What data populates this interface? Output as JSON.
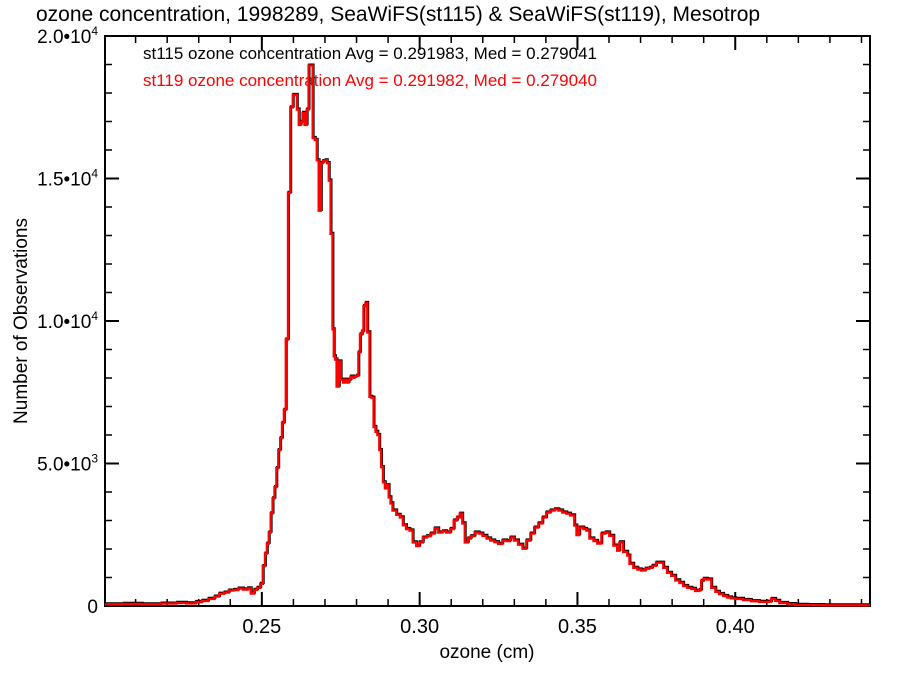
{
  "header": {
    "title": "ozone concentration, 1998289, SeaWiFS(st115) & SeaWiFS(st119), Mesotrop"
  },
  "legend": {
    "items": [
      {
        "name": "st115",
        "label": "st115 ozone concentration Avg = 0.291983, Med = 0.279041",
        "color": "#000000"
      },
      {
        "name": "st119",
        "label": "st119 ozone concentration Avg = 0.291982, Med = 0.279040",
        "color": "#ff0000"
      }
    ]
  },
  "chart_data": {
    "type": "line",
    "subtype": "histogram-step",
    "title": "ozone concentration, 1998289, SeaWiFS(st115) & SeaWiFS(st119), Mesotrop",
    "xlabel": "ozone (cm)",
    "ylabel": "Number of Observations",
    "xlim": [
      0.2003,
      0.4427
    ],
    "ylim": [
      0,
      20000
    ],
    "grid": false,
    "legend_position": "top-left-inside",
    "axis_color": "#000000",
    "x_ticks": {
      "major": [
        {
          "value": 0.25,
          "label": "0.25"
        },
        {
          "value": 0.3,
          "label": "0.30"
        },
        {
          "value": 0.35,
          "label": "0.35"
        },
        {
          "value": 0.4,
          "label": "0.40"
        }
      ],
      "minor_step": 0.01
    },
    "y_ticks": {
      "major": [
        {
          "value": 0,
          "mantissa": "0",
          "exponent": ""
        },
        {
          "value": 5000,
          "mantissa": "5.0•10",
          "exponent": "3"
        },
        {
          "value": 10000,
          "mantissa": "1.0•10",
          "exponent": "4"
        },
        {
          "value": 15000,
          "mantissa": "1.5•10",
          "exponent": "4"
        },
        {
          "value": 20000,
          "mantissa": "2.0•10",
          "exponent": "4"
        }
      ],
      "minor_step": 1000
    },
    "series": [
      {
        "name": "st115 ozone concentration",
        "color": "#000000",
        "avg": "0.291983",
        "med": "0.279041"
      },
      {
        "name": "st119 ozone concentration",
        "color": "#ff0000",
        "avg": "0.291982",
        "med": "0.279040"
      }
    ],
    "x_end": 0.4427,
    "steps": [
      [
        0.2003,
        60
      ],
      [
        0.206,
        75
      ],
      [
        0.212,
        60
      ],
      [
        0.218,
        85
      ],
      [
        0.223,
        110
      ],
      [
        0.226,
        90
      ],
      [
        0.229,
        140
      ],
      [
        0.231,
        180
      ],
      [
        0.233,
        250
      ],
      [
        0.235,
        330
      ],
      [
        0.2365,
        430
      ],
      [
        0.238,
        470
      ],
      [
        0.2395,
        540
      ],
      [
        0.241,
        560
      ],
      [
        0.2425,
        610
      ],
      [
        0.244,
        580
      ],
      [
        0.2455,
        620
      ],
      [
        0.2465,
        440
      ],
      [
        0.2475,
        570
      ],
      [
        0.2485,
        640
      ],
      [
        0.2495,
        780
      ],
      [
        0.2503,
        1400
      ],
      [
        0.251,
        1840
      ],
      [
        0.2516,
        2190
      ],
      [
        0.2522,
        2580
      ],
      [
        0.2528,
        3250
      ],
      [
        0.2534,
        3780
      ],
      [
        0.254,
        4170
      ],
      [
        0.2546,
        4840
      ],
      [
        0.2552,
        5470
      ],
      [
        0.2558,
        5890
      ],
      [
        0.2564,
        6420
      ],
      [
        0.257,
        6880
      ],
      [
        0.2576,
        9350
      ],
      [
        0.2583,
        14500
      ],
      [
        0.259,
        17500
      ],
      [
        0.2598,
        17930
      ],
      [
        0.2605,
        17930
      ],
      [
        0.2611,
        17420
      ],
      [
        0.2617,
        16880
      ],
      [
        0.2623,
        16990
      ],
      [
        0.2629,
        17300
      ],
      [
        0.2635,
        16880
      ],
      [
        0.2642,
        17420
      ],
      [
        0.2648,
        18960
      ],
      [
        0.2655,
        18960
      ],
      [
        0.2661,
        16420
      ],
      [
        0.2668,
        16350
      ],
      [
        0.2674,
        15640
      ],
      [
        0.268,
        13870
      ],
      [
        0.2687,
        15540
      ],
      [
        0.2693,
        15610
      ],
      [
        0.27,
        15640
      ],
      [
        0.2706,
        15540
      ],
      [
        0.2712,
        14930
      ],
      [
        0.2718,
        13060
      ],
      [
        0.2724,
        9710
      ],
      [
        0.2728,
        8760
      ],
      [
        0.2732,
        8650
      ],
      [
        0.2737,
        7700
      ],
      [
        0.2744,
        8580
      ],
      [
        0.275,
        7940
      ],
      [
        0.2757,
        7840
      ],
      [
        0.2763,
        7940
      ],
      [
        0.2769,
        7840
      ],
      [
        0.2775,
        7940
      ],
      [
        0.2781,
        8050
      ],
      [
        0.2788,
        8010
      ],
      [
        0.2794,
        8050
      ],
      [
        0.28,
        8080
      ],
      [
        0.2806,
        8900
      ],
      [
        0.2811,
        9530
      ],
      [
        0.2817,
        9640
      ],
      [
        0.2822,
        10520
      ],
      [
        0.2828,
        10630
      ],
      [
        0.2834,
        9600
      ],
      [
        0.2841,
        7340
      ],
      [
        0.2847,
        7310
      ],
      [
        0.2854,
        6280
      ],
      [
        0.286,
        6110
      ],
      [
        0.2866,
        6000
      ],
      [
        0.2872,
        5470
      ],
      [
        0.2878,
        4870
      ],
      [
        0.2884,
        4340
      ],
      [
        0.289,
        4130
      ],
      [
        0.2896,
        4240
      ],
      [
        0.2902,
        3810
      ],
      [
        0.2908,
        3600
      ],
      [
        0.2914,
        3350
      ],
      [
        0.2926,
        3200
      ],
      [
        0.2937,
        3110
      ],
      [
        0.2947,
        2830
      ],
      [
        0.2957,
        2700
      ],
      [
        0.2968,
        2650
      ],
      [
        0.2978,
        2230
      ],
      [
        0.2989,
        2100
      ],
      [
        0.2999,
        2230
      ],
      [
        0.301,
        2400
      ],
      [
        0.3022,
        2450
      ],
      [
        0.3034,
        2540
      ],
      [
        0.3047,
        2720
      ],
      [
        0.3059,
        2580
      ],
      [
        0.3072,
        2620
      ],
      [
        0.3084,
        2580
      ],
      [
        0.3097,
        2700
      ],
      [
        0.3108,
        3000
      ],
      [
        0.3118,
        3100
      ],
      [
        0.3127,
        3240
      ],
      [
        0.3135,
        2900
      ],
      [
        0.3143,
        2230
      ],
      [
        0.3153,
        2370
      ],
      [
        0.3162,
        2450
      ],
      [
        0.3174,
        2580
      ],
      [
        0.3187,
        2540
      ],
      [
        0.3199,
        2460
      ],
      [
        0.3212,
        2370
      ],
      [
        0.3224,
        2300
      ],
      [
        0.3237,
        2240
      ],
      [
        0.3249,
        2180
      ],
      [
        0.3262,
        2300
      ],
      [
        0.3274,
        2280
      ],
      [
        0.3287,
        2400
      ],
      [
        0.3299,
        2300
      ],
      [
        0.3312,
        2150
      ],
      [
        0.3326,
        2010
      ],
      [
        0.3338,
        2300
      ],
      [
        0.3351,
        2540
      ],
      [
        0.3363,
        2750
      ],
      [
        0.3376,
        2900
      ],
      [
        0.3389,
        3100
      ],
      [
        0.3401,
        3280
      ],
      [
        0.3414,
        3350
      ],
      [
        0.3427,
        3390
      ],
      [
        0.344,
        3350
      ],
      [
        0.3452,
        3280
      ],
      [
        0.3465,
        3240
      ],
      [
        0.3477,
        3180
      ],
      [
        0.349,
        2820
      ],
      [
        0.3497,
        2490
      ],
      [
        0.3506,
        2750
      ],
      [
        0.3519,
        2700
      ],
      [
        0.3528,
        2650
      ],
      [
        0.3538,
        2370
      ],
      [
        0.3551,
        2280
      ],
      [
        0.3563,
        2190
      ],
      [
        0.3576,
        2540
      ],
      [
        0.3588,
        2580
      ],
      [
        0.3601,
        2460
      ],
      [
        0.3614,
        2120
      ],
      [
        0.3626,
        1940
      ],
      [
        0.3633,
        2230
      ],
      [
        0.3645,
        1900
      ],
      [
        0.3658,
        1770
      ],
      [
        0.3665,
        1480
      ],
      [
        0.3677,
        1340
      ],
      [
        0.369,
        1280
      ],
      [
        0.3702,
        1250
      ],
      [
        0.3715,
        1310
      ],
      [
        0.3728,
        1340
      ],
      [
        0.3737,
        1410
      ],
      [
        0.3749,
        1520
      ],
      [
        0.3761,
        1520
      ],
      [
        0.3772,
        1340
      ],
      [
        0.3784,
        1165
      ],
      [
        0.3797,
        1060
      ],
      [
        0.381,
        900
      ],
      [
        0.3823,
        810
      ],
      [
        0.3835,
        700
      ],
      [
        0.3848,
        640
      ],
      [
        0.3861,
        600
      ],
      [
        0.3873,
        530
      ],
      [
        0.3886,
        560
      ],
      [
        0.3892,
        880
      ],
      [
        0.3899,
        950
      ],
      [
        0.3911,
        930
      ],
      [
        0.3924,
        640
      ],
      [
        0.3937,
        500
      ],
      [
        0.3949,
        420
      ],
      [
        0.3962,
        350
      ],
      [
        0.3975,
        300
      ],
      [
        0.3987,
        270
      ],
      [
        0.4,
        250
      ],
      [
        0.4025,
        210
      ],
      [
        0.405,
        170
      ],
      [
        0.4076,
        145
      ],
      [
        0.4101,
        150
      ],
      [
        0.4114,
        245
      ],
      [
        0.4127,
        180
      ],
      [
        0.414,
        105
      ],
      [
        0.4165,
        65
      ],
      [
        0.419,
        40
      ],
      [
        0.4229,
        30
      ],
      [
        0.4279,
        25
      ],
      [
        0.433,
        25
      ],
      [
        0.438,
        25
      ],
      [
        0.4405,
        25
      ]
    ]
  }
}
